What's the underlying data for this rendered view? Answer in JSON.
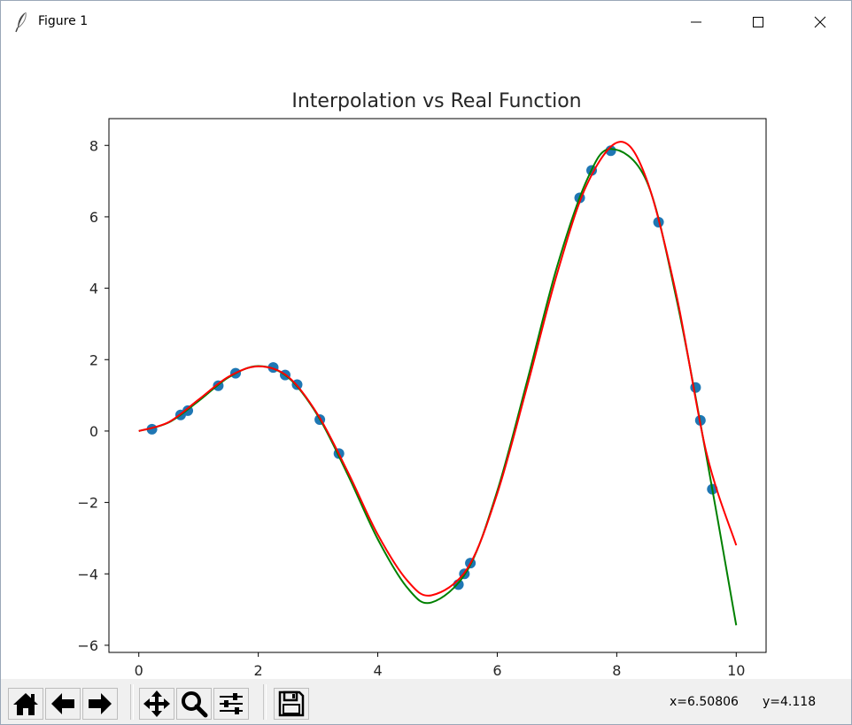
{
  "window": {
    "title": "Figure 1",
    "controls": [
      "minimize",
      "maximize",
      "close"
    ]
  },
  "toolbar": {
    "buttons": [
      {
        "name": "home-button",
        "icon": "home-icon"
      },
      {
        "name": "back-button",
        "icon": "arrow-left-icon"
      },
      {
        "name": "forward-button",
        "icon": "arrow-right-icon"
      },
      {
        "name": "pan-button",
        "icon": "move-icon"
      },
      {
        "name": "zoom-button",
        "icon": "magnifier-icon"
      },
      {
        "name": "subplots-button",
        "icon": "sliders-icon"
      },
      {
        "name": "save-button",
        "icon": "floppy-disk-icon"
      }
    ],
    "x_readout": "x=6.50806",
    "y_readout": "y=4.118"
  },
  "chart_data": {
    "type": "line",
    "title": "Interpolation vs Real Function",
    "xlabel": "",
    "ylabel": "",
    "xlim": [
      -0.5,
      10.5
    ],
    "ylim": [
      -6.2,
      8.75
    ],
    "xticks": [
      0,
      2,
      4,
      6,
      8,
      10
    ],
    "yticks": [
      -6,
      -4,
      -2,
      0,
      2,
      4,
      6,
      8
    ],
    "grid": false,
    "legend": "none",
    "series": [
      {
        "type": "line",
        "color": "#008000",
        "x": [
          0,
          0.5,
          1,
          1.5,
          2,
          2.5,
          3,
          3.5,
          4,
          4.5,
          4.9,
          5.5,
          6,
          6.5,
          7,
          7.5,
          7.9,
          8.5,
          9,
          9.5,
          10
        ],
        "y": [
          0,
          0.24,
          0.84,
          1.5,
          1.82,
          1.5,
          0.42,
          -1.23,
          -3.03,
          -4.4,
          -4.8,
          -3.9,
          -1.68,
          1.4,
          4.6,
          7.03,
          7.9,
          7.0,
          3.7,
          -0.7,
          -5.44
        ]
      },
      {
        "type": "line",
        "color": "#ff0000",
        "x": [
          0,
          0.5,
          1,
          1.5,
          2,
          2.5,
          3,
          3.5,
          4,
          4.5,
          4.9,
          5.5,
          6,
          6.5,
          7,
          7.5,
          8.05,
          8.5,
          9,
          9.5,
          10
        ],
        "y": [
          0,
          0.25,
          0.88,
          1.52,
          1.81,
          1.52,
          0.45,
          -1.15,
          -2.9,
          -4.2,
          -4.6,
          -3.85,
          -1.75,
          1.25,
          4.4,
          6.9,
          8.1,
          7.05,
          3.8,
          -0.6,
          -3.2
        ]
      },
      {
        "type": "scatter",
        "color": "#1f77b4",
        "x": [
          0.22,
          0.7,
          0.82,
          1.33,
          1.62,
          2.25,
          2.45,
          2.65,
          3.03,
          3.35,
          5.35,
          5.45,
          5.55,
          7.38,
          7.58,
          7.9,
          8.7,
          9.32,
          9.4,
          9.6
        ],
        "y": [
          0.05,
          0.45,
          0.57,
          1.27,
          1.62,
          1.78,
          1.57,
          1.3,
          0.32,
          -0.63,
          -4.3,
          -4.0,
          -3.7,
          6.53,
          7.3,
          7.85,
          5.85,
          1.22,
          0.3,
          -1.63
        ]
      }
    ]
  }
}
